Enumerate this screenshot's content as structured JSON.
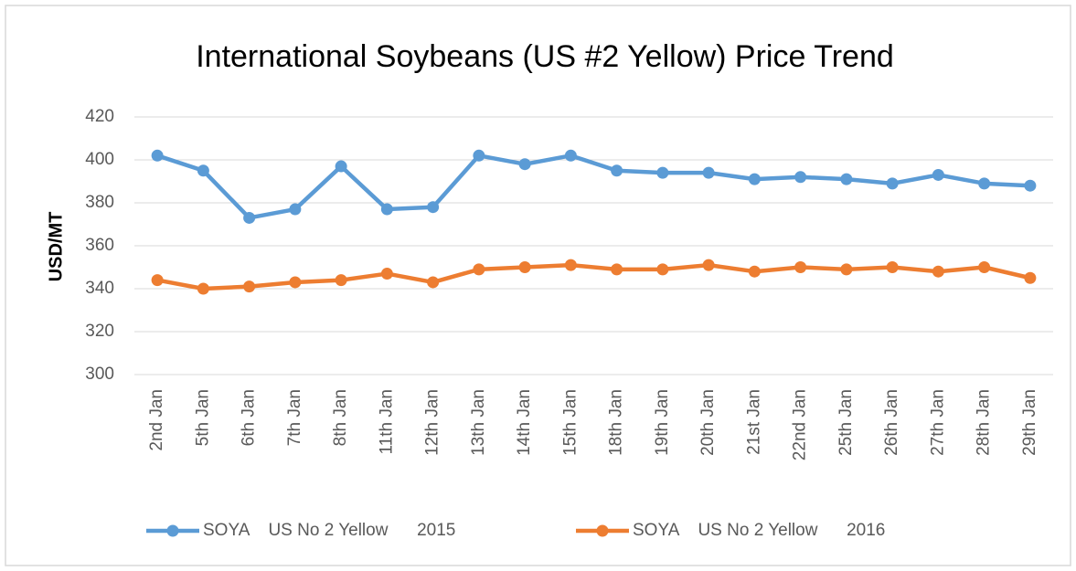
{
  "chart_data": {
    "type": "line",
    "title": "International Soybeans (US #2 Yellow) Price Trend",
    "y_label": "USD/MT",
    "categories": [
      "2nd Jan",
      "5th Jan",
      "6th Jan",
      "7th Jan",
      "8th Jan",
      "11th Jan",
      "12th Jan",
      "13th Jan",
      "14th Jan",
      "15th Jan",
      "18th Jan",
      "19th Jan",
      "20th Jan",
      "21st Jan",
      "22nd Jan",
      "25th Jan",
      "26th Jan",
      "27th Jan",
      "28th Jan",
      "29th Jan"
    ],
    "series": [
      {
        "name": "SOYA    US No 2 Yellow      2015",
        "color": "#5b9bd5",
        "values": [
          402,
          395,
          373,
          377,
          397,
          377,
          378,
          402,
          398,
          402,
          395,
          394,
          394,
          391,
          392,
          391,
          389,
          393,
          389,
          388
        ]
      },
      {
        "name": "SOYA    US No 2 Yellow      2016",
        "color": "#ed7d31",
        "values": [
          344,
          340,
          341,
          343,
          344,
          347,
          343,
          349,
          350,
          351,
          349,
          349,
          351,
          348,
          350,
          349,
          350,
          348,
          350,
          345
        ]
      }
    ],
    "ylim": [
      300,
      420
    ],
    "yticks": [
      300,
      320,
      340,
      360,
      380,
      400,
      420
    ],
    "grid": true,
    "legend": "bottom"
  }
}
